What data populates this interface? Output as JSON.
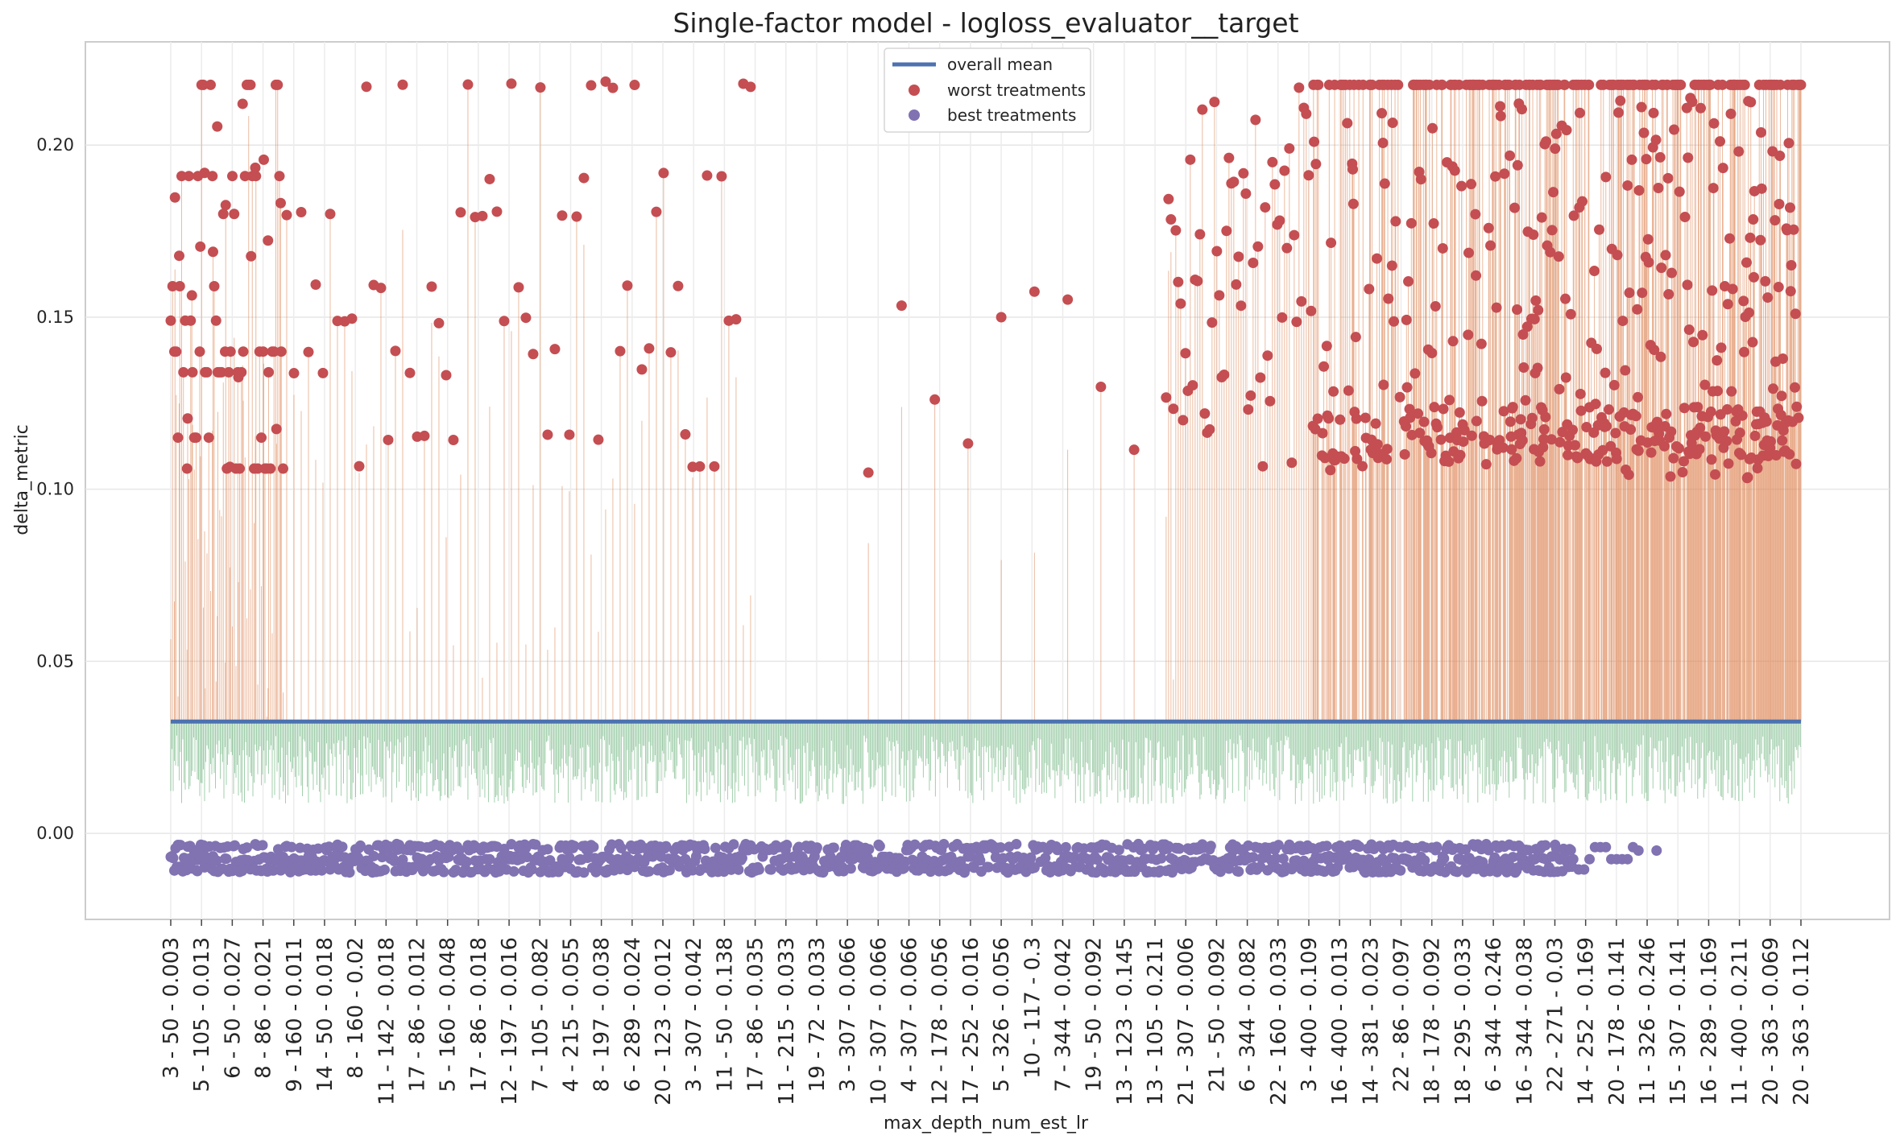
{
  "chart_data": {
    "type": "scatter",
    "title": "Single-factor model - logloss_evaluator__target",
    "xlabel": "max_depth_num_est_lr",
    "ylabel": "delta_metric",
    "ylim": [
      -0.025,
      0.23
    ],
    "yticks": [
      0.0,
      0.05,
      0.1,
      0.15,
      0.2
    ],
    "ytick_labels": [
      "0.00",
      "0.05",
      "0.10",
      "0.15",
      "0.20"
    ],
    "grid": true,
    "legend_position": "top-center",
    "colors": {
      "overall_mean": "#4c72b0",
      "worst": "#c44e52",
      "best": "#8172b2",
      "worst_stems": "#dd8452",
      "best_stems": "#55a868"
    },
    "x_tick_labels": [
      "3 - 50 - 0.003",
      "5 - 105 - 0.013",
      "6 - 50 - 0.027",
      "8 - 86 - 0.021",
      "9 - 160 - 0.011",
      "14 - 50 - 0.018",
      "8 - 160 - 0.02",
      "11 - 142 - 0.018",
      "17 - 86 - 0.012",
      "5 - 160 - 0.048",
      "17 - 86 - 0.018",
      "12 - 197 - 0.016",
      "7 - 105 - 0.082",
      "4 - 215 - 0.055",
      "8 - 197 - 0.038",
      "6 - 289 - 0.024",
      "20 - 123 - 0.012",
      "3 - 307 - 0.042",
      "11 - 50 - 0.138",
      "17 - 86 - 0.035",
      "11 - 215 - 0.033",
      "19 - 72 - 0.033",
      "3 - 307 - 0.066",
      "10 - 307 - 0.066",
      "4 - 307 - 0.066",
      "12 - 178 - 0.056",
      "17 - 252 - 0.016",
      "5 - 326 - 0.056",
      "10 - 117 - 0.3",
      "7 - 344 - 0.042",
      "19 - 50 - 0.092",
      "13 - 123 - 0.145",
      "13 - 105 - 0.211",
      "21 - 307 - 0.006",
      "21 - 50 - 0.092",
      "6 - 344 - 0.082",
      "22 - 160 - 0.033",
      "3 - 400 - 0.109",
      "16 - 400 - 0.013",
      "14 - 381 - 0.023",
      "22 - 86 - 0.097",
      "18 - 178 - 0.092",
      "18 - 295 - 0.033",
      "6 - 344 - 0.246",
      "16 - 344 - 0.038",
      "22 - 271 - 0.03",
      "14 - 252 - 0.169",
      "20 - 178 - 0.141",
      "11 - 326 - 0.246",
      "15 - 307 - 0.141",
      "16 - 289 - 0.169",
      "11 - 400 - 0.211",
      "20 - 363 - 0.069",
      "20 - 363 - 0.112"
    ],
    "n_treatments": 2700,
    "overall_mean": 0.0325,
    "worst_value_levels": [
      0.2175,
      0.191,
      0.18,
      0.159,
      0.149,
      0.14,
      0.134,
      0.115,
      0.106
    ],
    "best_value_levels": [
      -0.004,
      -0.0075,
      -0.0105
    ],
    "series": [
      {
        "name": "overall mean"
      },
      {
        "name": "worst treatments"
      },
      {
        "name": "best treatments"
      }
    ]
  }
}
